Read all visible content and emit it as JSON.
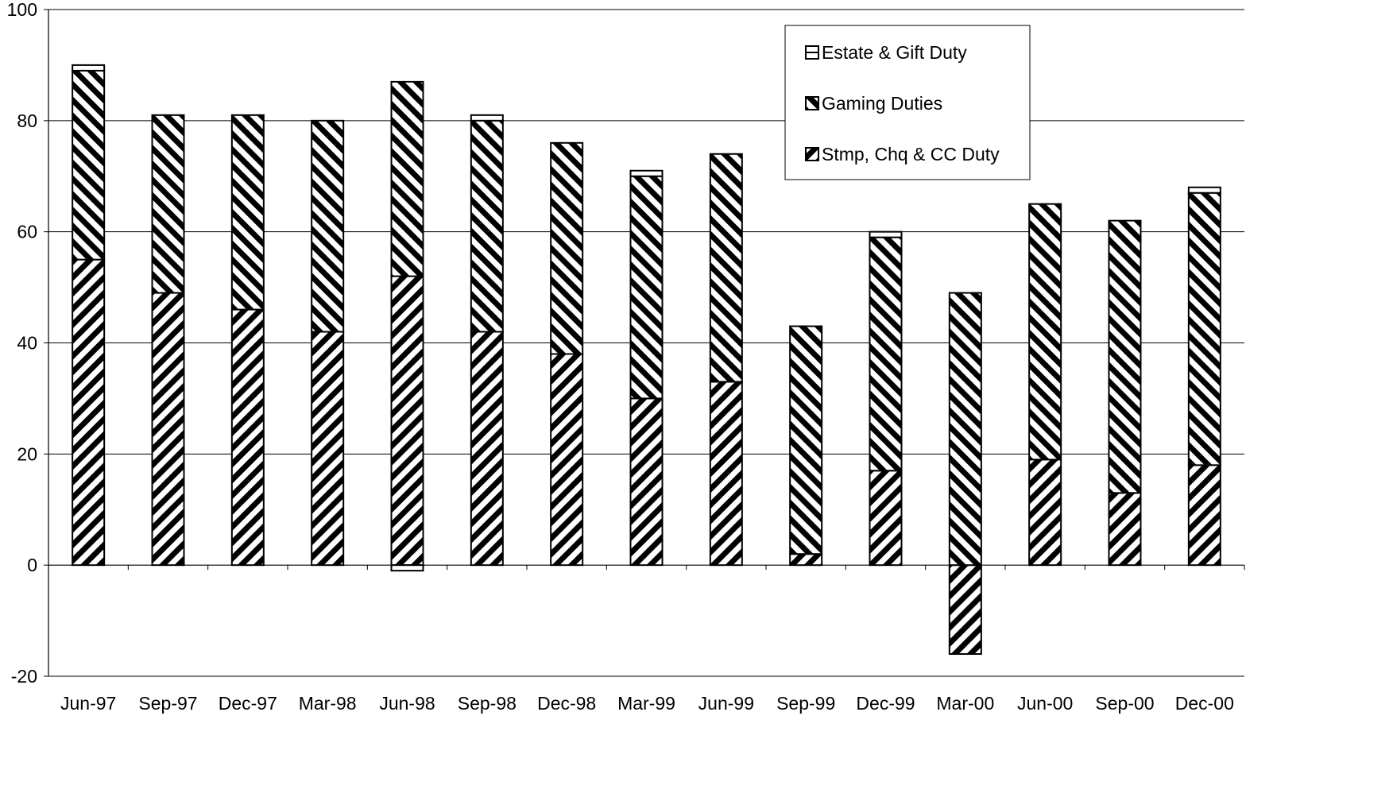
{
  "chart_data": {
    "type": "bar",
    "stacked": true,
    "title": "",
    "xlabel": "",
    "ylabel": "",
    "ylim": [
      -20,
      100
    ],
    "yticks": [
      -20,
      0,
      20,
      40,
      60,
      80,
      100
    ],
    "grid": "horizontal",
    "legend_position": "top-right",
    "categories": [
      "Jun-97",
      "Sep-97",
      "Dec-97",
      "Mar-98",
      "Jun-98",
      "Sep-98",
      "Dec-98",
      "Mar-99",
      "Jun-99",
      "Sep-99",
      "Dec-99",
      "Mar-00",
      "Jun-00",
      "Sep-00",
      "Dec-00"
    ],
    "series": [
      {
        "name": "Stmp, Chq & CC Duty",
        "pattern": "diagonal-up",
        "values": [
          55,
          49,
          46,
          42,
          52,
          42,
          38,
          30,
          33,
          2,
          17,
          -16,
          19,
          13,
          18
        ]
      },
      {
        "name": "Gaming Duties",
        "pattern": "diagonal-down",
        "values": [
          34,
          32,
          35,
          38,
          35,
          38,
          38,
          40,
          41,
          41,
          42,
          49,
          46,
          49,
          49
        ]
      },
      {
        "name": "Estate & Gift Duty",
        "pattern": "horizontal",
        "values": [
          1,
          0,
          0,
          0,
          -1,
          1,
          0,
          1,
          0,
          0,
          1,
          0,
          0,
          0,
          1
        ]
      }
    ],
    "legend_order": [
      "Estate & Gift Duty",
      "Gaming Duties",
      "Stmp, Chq & CC Duty"
    ]
  }
}
